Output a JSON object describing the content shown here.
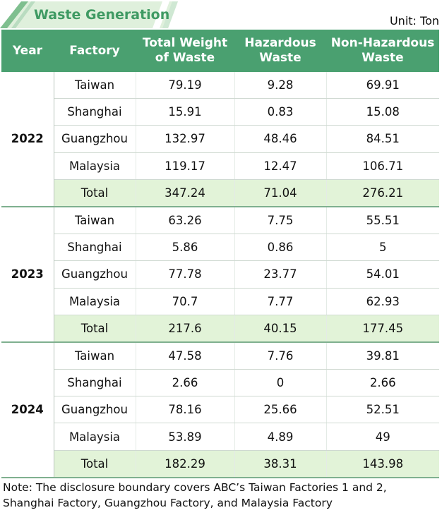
{
  "header": {
    "title": "Waste Generation",
    "unit": "Unit: Ton"
  },
  "table": {
    "columns": [
      [
        "Year"
      ],
      [
        "Factory"
      ],
      [
        "Total Weight",
        "of Waste"
      ],
      [
        "Hazardous",
        "Waste"
      ],
      [
        "Non-Hazardous",
        "Waste"
      ]
    ],
    "groups": [
      {
        "year": "2022",
        "rows": [
          [
            "Taiwan",
            "79.19",
            "9.28",
            "69.91"
          ],
          [
            "Shanghai",
            "15.91",
            "0.83",
            "15.08"
          ],
          [
            "Guangzhou",
            "132.97",
            "48.46",
            "84.51"
          ],
          [
            "Malaysia",
            "119.17",
            "12.47",
            "106.71"
          ],
          [
            "Total",
            "347.24",
            "71.04",
            "276.21"
          ]
        ]
      },
      {
        "year": "2023",
        "rows": [
          [
            "Taiwan",
            "63.26",
            "7.75",
            "55.51"
          ],
          [
            "Shanghai",
            "5.86",
            "0.86",
            "5"
          ],
          [
            "Guangzhou",
            "77.78",
            "23.77",
            "54.01"
          ],
          [
            "Malaysia",
            "70.7",
            "7.77",
            "62.93"
          ],
          [
            "Total",
            "217.6",
            "40.15",
            "177.45"
          ]
        ]
      },
      {
        "year": "2024",
        "rows": [
          [
            "Taiwan",
            "47.58",
            "7.76",
            "39.81"
          ],
          [
            "Shanghai",
            "2.66",
            "0",
            "2.66"
          ],
          [
            "Guangzhou",
            "78.16",
            "25.66",
            "52.51"
          ],
          [
            "Malaysia",
            "53.89",
            "4.89",
            "49"
          ],
          [
            "Total",
            "182.29",
            "38.31",
            "143.98"
          ]
        ]
      }
    ]
  },
  "note": "Note: The disclosure boundary covers ABC’s Taiwan Factories 1 and 2, Shanghai Factory, Guangzhou Factory, and Malaysia Factory"
}
